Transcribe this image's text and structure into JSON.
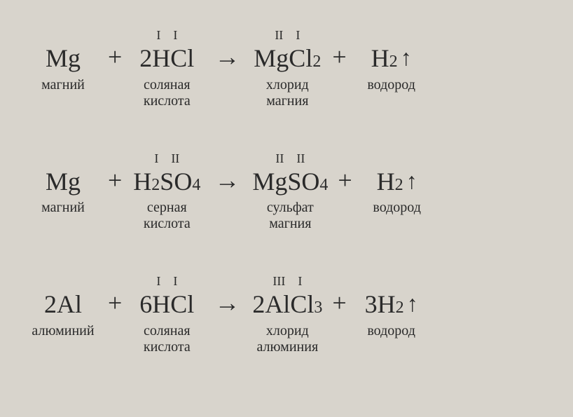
{
  "equations": [
    {
      "reactants": [
        {
          "oxidation": [],
          "formula_parts": [
            {
              "t": "Mg"
            }
          ],
          "label": "магний"
        },
        {
          "oxidation": [
            "I",
            "I"
          ],
          "formula_parts": [
            {
              "t": "2HCl"
            }
          ],
          "label": "соляная\nкислота"
        }
      ],
      "products": [
        {
          "oxidation": [
            "II",
            "I"
          ],
          "formula_parts": [
            {
              "t": "MgCl"
            },
            {
              "sub": "2"
            }
          ],
          "label": "хлорид\nмагния"
        },
        {
          "oxidation": [],
          "formula_parts": [
            {
              "t": "H"
            },
            {
              "sub": "2"
            }
          ],
          "label": "водород",
          "gas": true
        }
      ]
    },
    {
      "reactants": [
        {
          "oxidation": [],
          "formula_parts": [
            {
              "t": "Mg"
            }
          ],
          "label": "магний"
        },
        {
          "oxidation": [
            "I",
            "II"
          ],
          "formula_parts": [
            {
              "t": "H"
            },
            {
              "sub": "2"
            },
            {
              "t": "SO"
            },
            {
              "sub": "4"
            }
          ],
          "label": "серная\nкислота"
        }
      ],
      "products": [
        {
          "oxidation": [
            "II",
            "II"
          ],
          "formula_parts": [
            {
              "t": "MgSO"
            },
            {
              "sub": "4"
            }
          ],
          "label": "сульфат\nмагния"
        },
        {
          "oxidation": [],
          "formula_parts": [
            {
              "t": "H"
            },
            {
              "sub": "2"
            }
          ],
          "label": "водород",
          "gas": true
        }
      ]
    },
    {
      "reactants": [
        {
          "oxidation": [],
          "formula_parts": [
            {
              "t": "2Al"
            }
          ],
          "label": "алюминий"
        },
        {
          "oxidation": [
            "I",
            "I"
          ],
          "formula_parts": [
            {
              "t": "6HCl"
            }
          ],
          "label": "соляная\nкислота"
        }
      ],
      "products": [
        {
          "oxidation": [
            "III",
            "I"
          ],
          "formula_parts": [
            {
              "t": "2AlCl"
            },
            {
              "sub": "3"
            }
          ],
          "label": "хлорид\nалюминия"
        },
        {
          "oxidation": [],
          "formula_parts": [
            {
              "t": "3H"
            },
            {
              "sub": "2"
            }
          ],
          "label": "водород",
          "gas": true
        }
      ]
    }
  ],
  "operators": {
    "plus": "+",
    "arrow": "→",
    "up": "↑"
  },
  "colors": {
    "bg": "#d8d4cc",
    "text": "#2a2a2a"
  }
}
